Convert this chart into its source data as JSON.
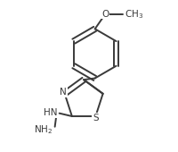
{
  "background_color": "#ffffff",
  "line_color": "#3a3a3a",
  "line_width": 1.4,
  "font_size": 7.5,
  "figsize": [
    2.0,
    1.7
  ],
  "dpi": 100,
  "xlim": [
    0.0,
    1.0
  ],
  "ylim": [
    0.0,
    1.0
  ]
}
